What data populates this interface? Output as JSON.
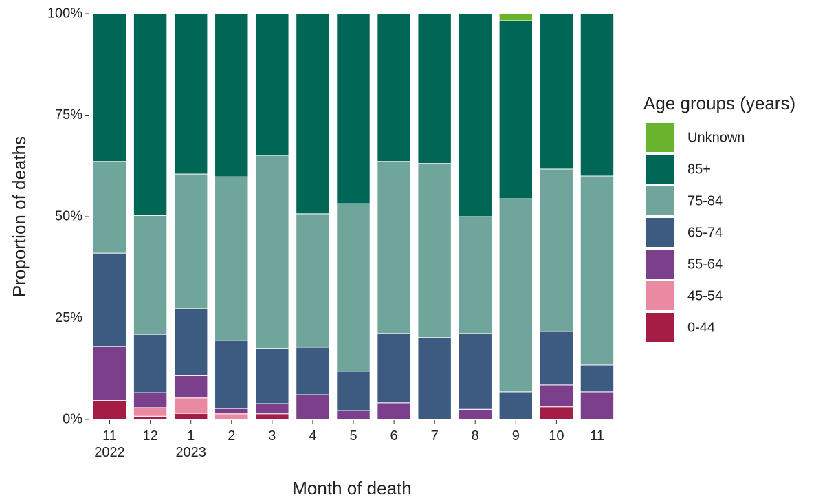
{
  "chart_data": {
    "type": "stacked-bar-100",
    "x_label": "Month of death",
    "y_label": "Proportion of deaths",
    "legend_title": "Age groups (years)",
    "categories": [
      "11\n2022",
      "12",
      "1\n2023",
      "2",
      "3",
      "4",
      "5",
      "6",
      "7",
      "8",
      "9",
      "10",
      "11"
    ],
    "series": [
      {
        "name": "0-44",
        "color": "#a51c45",
        "values": [
          4.7,
          0.8,
          1.5,
          0,
          1.4,
          0,
          0,
          0,
          0,
          0,
          0,
          3.1,
          0
        ]
      },
      {
        "name": "45-54",
        "color": "#ea8aa0",
        "values": [
          0,
          2.1,
          3.8,
          1.4,
          0,
          0,
          0,
          0,
          0,
          0,
          0,
          0,
          0
        ]
      },
      {
        "name": "55-64",
        "color": "#7b3f8c",
        "values": [
          13.3,
          3.7,
          5.5,
          1.3,
          2.5,
          6.1,
          2.2,
          4.1,
          0,
          2.5,
          0,
          5.4,
          6.8
        ]
      },
      {
        "name": "65-74",
        "color": "#3d5a80",
        "values": [
          23.0,
          14.4,
          16.5,
          16.8,
          13.6,
          11.7,
          9.7,
          17.1,
          20.2,
          18.7,
          6.8,
          13.2,
          6.6
        ]
      },
      {
        "name": "75-84",
        "color": "#6fa59a",
        "values": [
          22.6,
          29.3,
          33.2,
          40.3,
          47.6,
          32.9,
          41.3,
          42.4,
          42.9,
          28.8,
          47.6,
          40.0,
          46.6
        ]
      },
      {
        "name": "85+",
        "color": "#006655",
        "values": [
          36.4,
          49.7,
          39.5,
          40.2,
          34.9,
          49.3,
          46.8,
          36.4,
          36.9,
          50.0,
          43.9,
          38.3,
          40.0
        ]
      },
      {
        "name": "Unknown",
        "color": "#6ab42d",
        "values": [
          0,
          0,
          0,
          0,
          0,
          0,
          0,
          0,
          0,
          0,
          1.7,
          0,
          0
        ]
      }
    ],
    "ylim": [
      0,
      100
    ],
    "yticks": [
      {
        "value": 0,
        "label": "0%"
      },
      {
        "value": 25,
        "label": "25%"
      },
      {
        "value": 50,
        "label": "50%"
      },
      {
        "value": 75,
        "label": "75%"
      },
      {
        "value": 100,
        "label": "100%"
      }
    ],
    "legend_position": "right"
  }
}
